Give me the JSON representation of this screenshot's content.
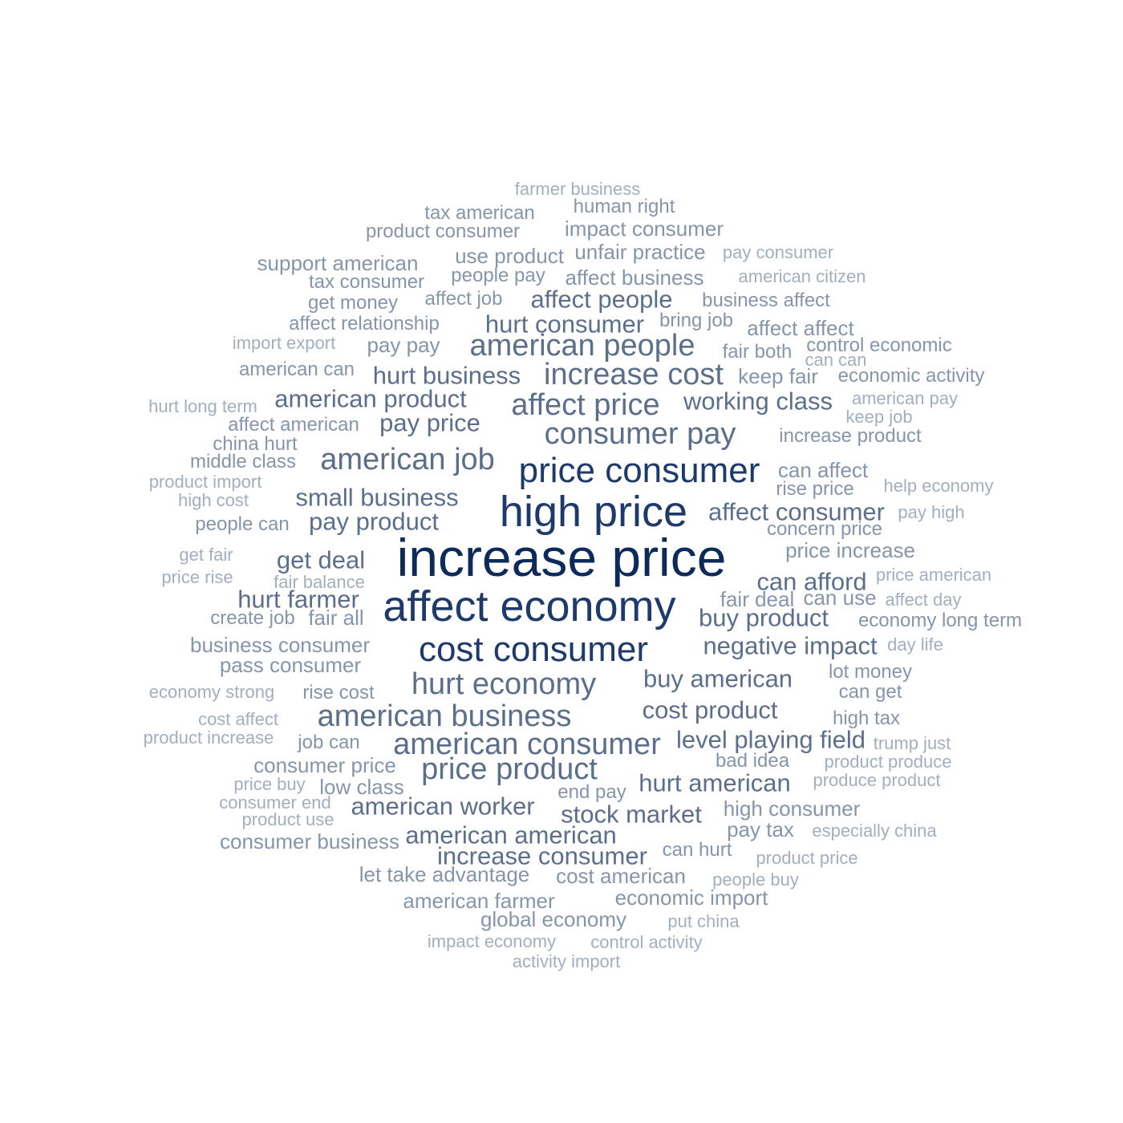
{
  "cloud": {
    "colors": {
      "darkest": "#0c2a5a",
      "dark": "#1e3a6b",
      "mid": "#5b6f8d",
      "light": "#8595ab",
      "lightest": "#a3aebe"
    },
    "words": [
      {
        "text": "increase price",
        "level": 1
      },
      {
        "text": "high price",
        "level": 2
      },
      {
        "text": "affect economy",
        "level": 2
      },
      {
        "text": "cost consumer",
        "level": 3
      },
      {
        "text": "price consumer",
        "level": 3
      },
      {
        "text": "hurt economy",
        "level": 4
      },
      {
        "text": "consumer pay",
        "level": 4
      },
      {
        "text": "affect price",
        "level": 4
      },
      {
        "text": "american business",
        "level": 4
      },
      {
        "text": "increase cost",
        "level": 4
      },
      {
        "text": "american consumer",
        "level": 4
      },
      {
        "text": "american job",
        "level": 4
      },
      {
        "text": "american people",
        "level": 4
      },
      {
        "text": "price product",
        "level": 4
      },
      {
        "text": "small business",
        "level": 5
      },
      {
        "text": "cost product",
        "level": 5
      },
      {
        "text": "buy american",
        "level": 5
      },
      {
        "text": "pay product",
        "level": 5
      },
      {
        "text": "affect consumer",
        "level": 5
      },
      {
        "text": "american worker",
        "level": 5
      },
      {
        "text": "hurt american",
        "level": 5
      },
      {
        "text": "american product",
        "level": 5
      },
      {
        "text": "negative impact",
        "level": 5
      },
      {
        "text": "working class",
        "level": 5
      },
      {
        "text": "hurt business",
        "level": 5
      },
      {
        "text": "stock market",
        "level": 5
      },
      {
        "text": "affect people",
        "level": 5
      },
      {
        "text": "buy product",
        "level": 5
      },
      {
        "text": "american american",
        "level": 5
      },
      {
        "text": "increase consumer",
        "level": 5
      },
      {
        "text": "hurt consumer",
        "level": 5
      },
      {
        "text": "pay price",
        "level": 5
      },
      {
        "text": "get deal",
        "level": 5
      },
      {
        "text": "can afford",
        "level": 5
      },
      {
        "text": "level playing field",
        "level": 5
      },
      {
        "text": "hurt farmer",
        "level": 5
      },
      {
        "text": "price increase",
        "level": 6
      },
      {
        "text": "affect business",
        "level": 6
      },
      {
        "text": "can affect",
        "level": 6
      },
      {
        "text": "business consumer",
        "level": 6
      },
      {
        "text": "pass consumer",
        "level": 6
      },
      {
        "text": "fair all",
        "level": 6
      },
      {
        "text": "pay pay",
        "level": 6
      },
      {
        "text": "keep fair",
        "level": 6
      },
      {
        "text": "consumer business",
        "level": 6
      },
      {
        "text": "low class",
        "level": 6
      },
      {
        "text": "high consumer",
        "level": 6
      },
      {
        "text": "affect affect",
        "level": 6
      },
      {
        "text": "unfair practice",
        "level": 6
      },
      {
        "text": "impact consumer",
        "level": 6
      },
      {
        "text": "support american",
        "level": 6
      },
      {
        "text": "pay tax",
        "level": 6
      },
      {
        "text": "economic import",
        "level": 6
      },
      {
        "text": "global economy",
        "level": 6
      },
      {
        "text": "cost american",
        "level": 6
      },
      {
        "text": "let take advantage",
        "level": 6
      },
      {
        "text": "consumer price",
        "level": 6
      },
      {
        "text": "american farmer",
        "level": 6
      },
      {
        "text": "fair deal",
        "level": 6
      },
      {
        "text": "can use",
        "level": 6
      },
      {
        "text": "use product",
        "level": 6
      },
      {
        "text": "economic activity",
        "level": 7
      },
      {
        "text": "economy long term",
        "level": 7
      },
      {
        "text": "lot money",
        "level": 7
      },
      {
        "text": "can get",
        "level": 7
      },
      {
        "text": "high tax",
        "level": 7
      },
      {
        "text": "bad idea",
        "level": 7
      },
      {
        "text": "can hurt",
        "level": 7
      },
      {
        "text": "people pay",
        "level": 7
      },
      {
        "text": "human right",
        "level": 7
      },
      {
        "text": "tax american",
        "level": 7
      },
      {
        "text": "product consumer",
        "level": 7
      },
      {
        "text": "tax consumer",
        "level": 7
      },
      {
        "text": "get money",
        "level": 7
      },
      {
        "text": "affect relationship",
        "level": 7
      },
      {
        "text": "american can",
        "level": 7
      },
      {
        "text": "affect american",
        "level": 7
      },
      {
        "text": "china hurt",
        "level": 7
      },
      {
        "text": "middle class",
        "level": 7
      },
      {
        "text": "people can",
        "level": 7
      },
      {
        "text": "create job",
        "level": 7
      },
      {
        "text": "rise cost",
        "level": 7
      },
      {
        "text": "job can",
        "level": 7
      },
      {
        "text": "end pay",
        "level": 7
      },
      {
        "text": "increase product",
        "level": 7
      },
      {
        "text": "rise price",
        "level": 7
      },
      {
        "text": "concern price",
        "level": 7
      },
      {
        "text": "fair both",
        "level": 7
      },
      {
        "text": "business affect",
        "level": 7
      },
      {
        "text": "control economic",
        "level": 7
      },
      {
        "text": "affect job",
        "level": 7
      },
      {
        "text": "bring job",
        "level": 7
      },
      {
        "text": "help economy",
        "level": 8
      },
      {
        "text": "pay high",
        "level": 8
      },
      {
        "text": "price american",
        "level": 8
      },
      {
        "text": "affect day",
        "level": 8
      },
      {
        "text": "day life",
        "level": 8
      },
      {
        "text": "trump just",
        "level": 8
      },
      {
        "text": "product produce",
        "level": 8
      },
      {
        "text": "produce product",
        "level": 8
      },
      {
        "text": "especially china",
        "level": 8
      },
      {
        "text": "product price",
        "level": 8
      },
      {
        "text": "people buy",
        "level": 8
      },
      {
        "text": "put china",
        "level": 8
      },
      {
        "text": "control activity",
        "level": 8
      },
      {
        "text": "impact economy",
        "level": 8
      },
      {
        "text": "activity import",
        "level": 8
      },
      {
        "text": "farmer business",
        "level": 8
      },
      {
        "text": "pay consumer",
        "level": 8
      },
      {
        "text": "american citizen",
        "level": 8
      },
      {
        "text": "import export",
        "level": 8
      },
      {
        "text": "hurt long term",
        "level": 8
      },
      {
        "text": "product import",
        "level": 8
      },
      {
        "text": "high cost",
        "level": 8
      },
      {
        "text": "get fair",
        "level": 8
      },
      {
        "text": "price rise",
        "level": 8
      },
      {
        "text": "fair balance",
        "level": 8
      },
      {
        "text": "economy strong",
        "level": 8
      },
      {
        "text": "cost affect",
        "level": 8
      },
      {
        "text": "product increase",
        "level": 8
      },
      {
        "text": "price buy",
        "level": 8
      },
      {
        "text": "consumer end",
        "level": 8
      },
      {
        "text": "product use",
        "level": 8
      },
      {
        "text": "american pay",
        "level": 8
      },
      {
        "text": "keep job",
        "level": 8
      },
      {
        "text": "can can",
        "level": 8
      }
    ]
  }
}
